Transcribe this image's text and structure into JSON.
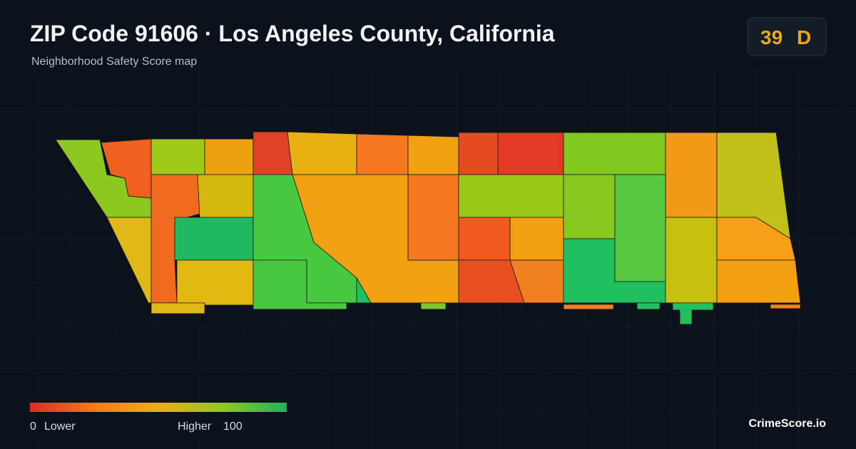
{
  "header": {
    "title": "ZIP Code 91606 · Los Angeles County, California",
    "subtitle": "Neighborhood Safety Score map"
  },
  "badge": {
    "score": "39",
    "grade": "D"
  },
  "legend": {
    "min": "0",
    "min_label": "Lower",
    "max_label": "Higher",
    "max": "100"
  },
  "footer": {
    "brand": "CrimeScore.io"
  }
}
